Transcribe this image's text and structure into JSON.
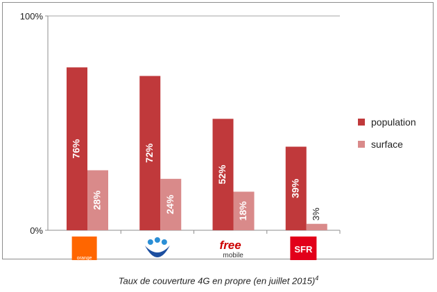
{
  "chart_data": {
    "type": "bar",
    "categories": [
      "Orange",
      "Bouygues Telecom",
      "Free mobile",
      "SFR"
    ],
    "series": [
      {
        "name": "population",
        "values": [
          76,
          72,
          52,
          39
        ],
        "labels": [
          "76%",
          "72%",
          "52%",
          "39%"
        ],
        "color": "#c0393b"
      },
      {
        "name": "surface",
        "values": [
          28,
          24,
          18,
          3
        ],
        "labels": [
          "28%",
          "24%",
          "18%",
          "3%"
        ],
        "color": "#d98a8a"
      }
    ],
    "ylim": [
      0,
      100
    ],
    "yticks": [
      {
        "value": 0,
        "label": "0%"
      },
      {
        "value": 100,
        "label": "100%"
      }
    ],
    "grid": true,
    "legend": "right"
  },
  "logos": {
    "orange": {
      "text": "orange",
      "color": "#ff6600"
    },
    "bouygues": {
      "color": "#1d4fa0",
      "dot_color": "#2b8fd6"
    },
    "free": {
      "text_top": "free",
      "text_bottom": "mobile",
      "color": "#cc0000"
    },
    "sfr": {
      "text": "SFR",
      "color": "#e2001a"
    }
  },
  "caption": {
    "text": "Taux de couverture 4G en propre (en juillet 2015)",
    "note": "4"
  }
}
